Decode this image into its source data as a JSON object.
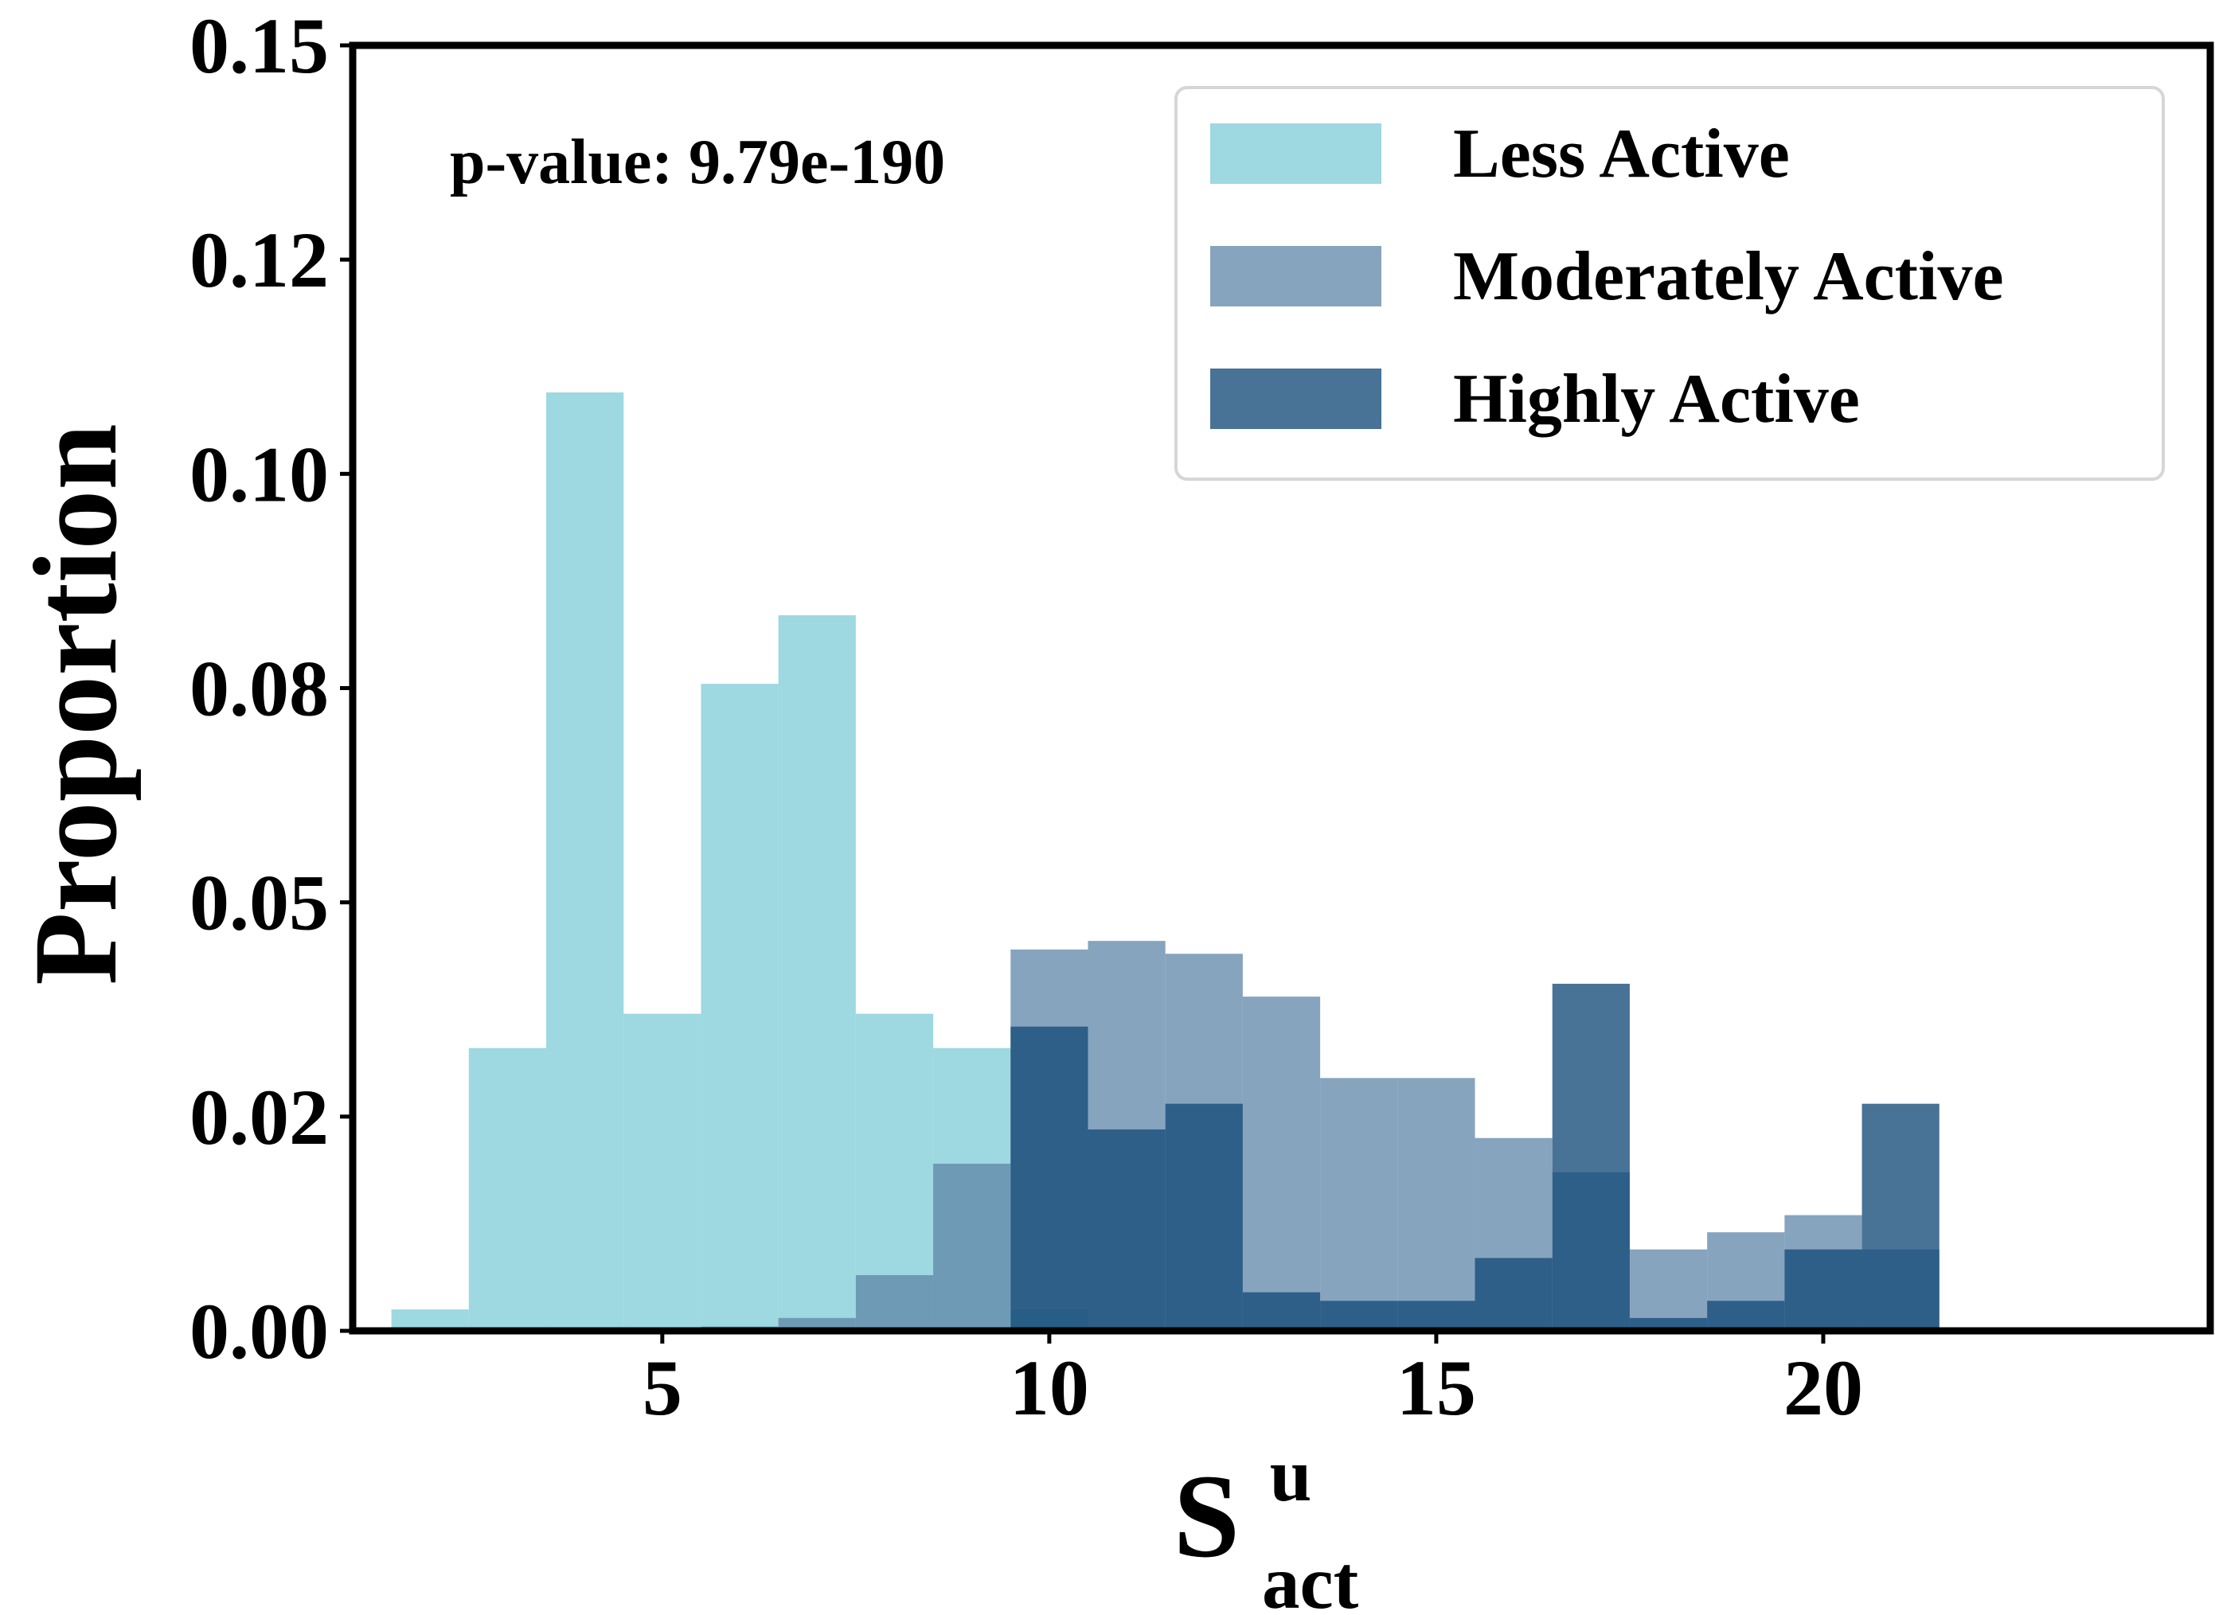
{
  "chart_data": {
    "type": "bar",
    "subtype": "overlapping-histogram",
    "title": "",
    "xlabel": "S",
    "xlabel_superscript": "u",
    "xlabel_subscript": "act",
    "ylabel": "Proportion",
    "xlim": [
      1,
      25
    ],
    "ylim": [
      0,
      0.15
    ],
    "xticks": [
      5,
      10,
      15,
      20
    ],
    "xtick_labels": [
      "5",
      "10",
      "15",
      "20"
    ],
    "yticks": [
      0,
      0.025,
      0.05,
      0.075,
      0.1,
      0.125,
      0.15
    ],
    "ytick_labels": [
      "0.00",
      "0.02",
      "0.05",
      "0.08",
      "0.10",
      "0.12",
      "0.15"
    ],
    "bin_width": 1,
    "annotation": "p-value: 9.79e-190",
    "legend_position": "top-right",
    "series": [
      {
        "name": "Less Active",
        "color": "#7ecbd6",
        "opacity": 0.75,
        "bins": [
          2,
          3,
          4,
          5,
          6,
          7,
          8,
          9,
          10
        ],
        "values": [
          0.0025,
          0.033,
          0.1095,
          0.037,
          0.0755,
          0.0835,
          0.037,
          0.033,
          0.0025
        ]
      },
      {
        "name": "Moderately Active",
        "color": "#5f86a8",
        "opacity": 0.75,
        "bins": [
          6,
          7,
          8,
          9,
          10,
          11,
          12,
          13,
          14,
          15,
          16,
          17,
          18,
          19,
          20,
          21
        ],
        "values": [
          0.0005,
          0.0015,
          0.0065,
          0.0195,
          0.0445,
          0.0455,
          0.044,
          0.039,
          0.0295,
          0.0295,
          0.0225,
          0.0185,
          0.0095,
          0.0115,
          0.0135,
          0.0095
        ]
      },
      {
        "name": "Highly Active",
        "color": "#154c78",
        "opacity": 0.78,
        "bins": [
          10,
          11,
          12,
          13,
          14,
          15,
          16,
          17,
          18,
          19,
          20,
          21
        ],
        "values": [
          0.0355,
          0.0235,
          0.0265,
          0.0045,
          0.0035,
          0.0035,
          0.0085,
          0.0405,
          0.0015,
          0.0035,
          0.0095,
          0.0265
        ]
      }
    ]
  }
}
